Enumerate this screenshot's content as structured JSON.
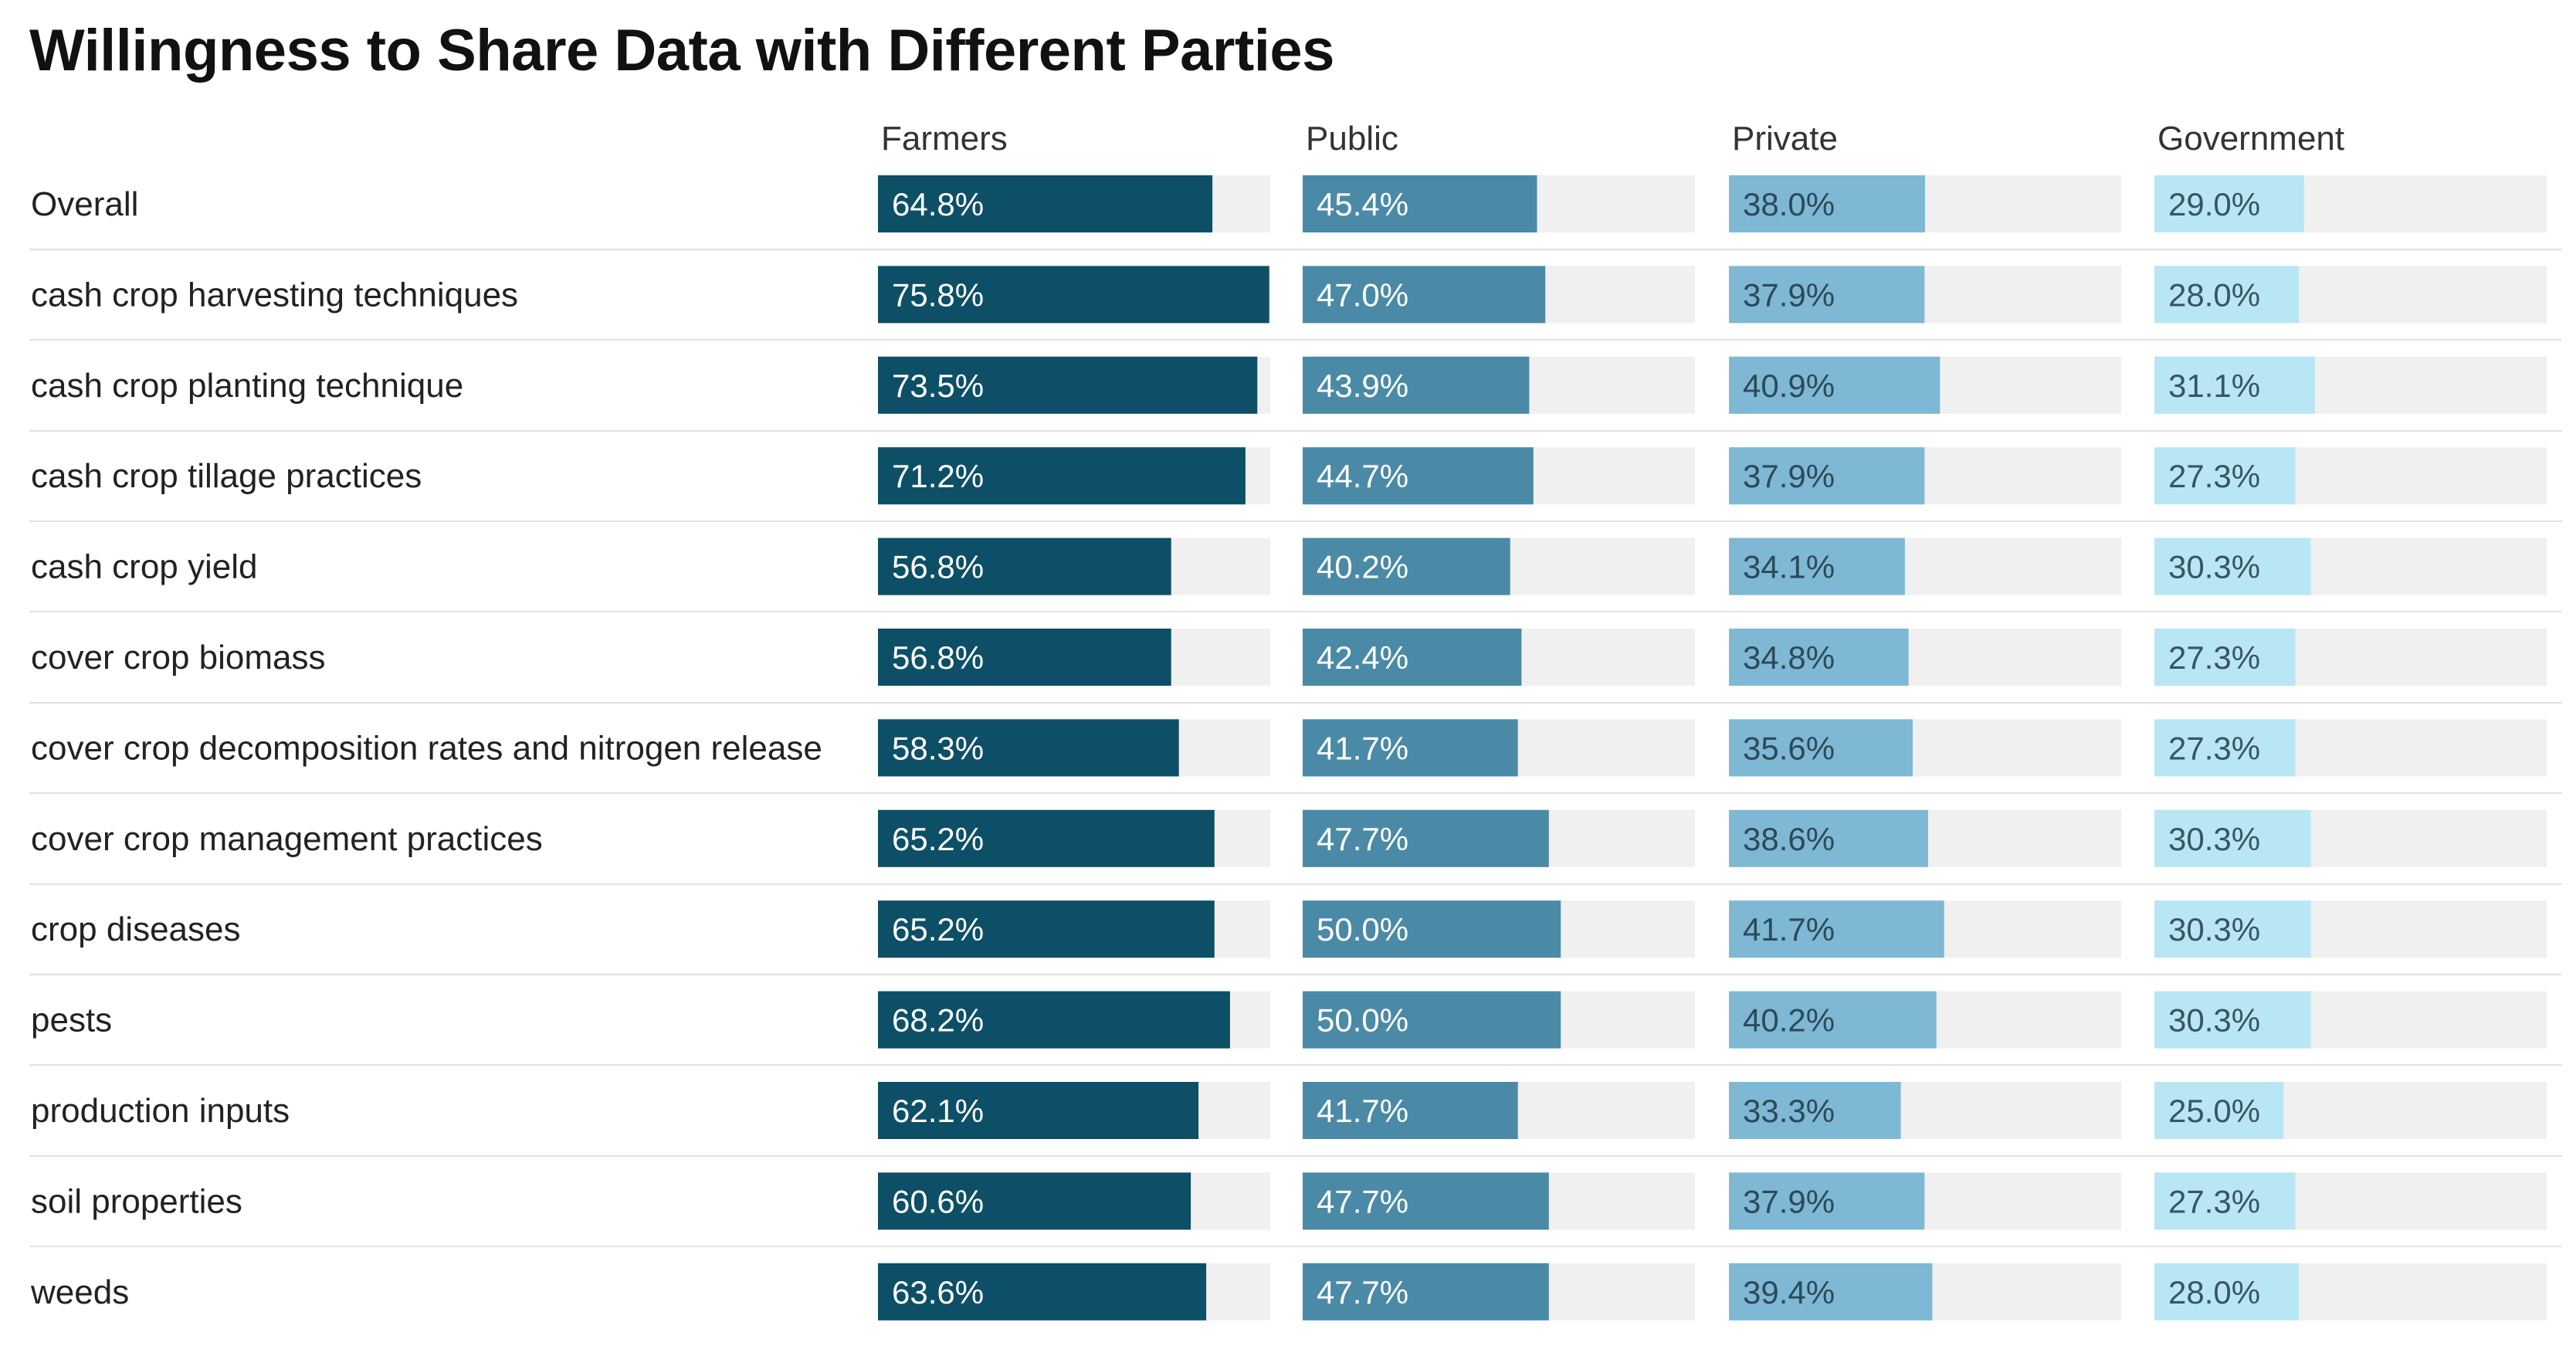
{
  "chart_data": {
    "type": "bar",
    "title": "Willingness to Share Data with Different Parties",
    "series": [
      {
        "name": "Farmers",
        "color": "#0d4f66",
        "label_color": "#ffffff",
        "values": [
          64.8,
          75.8,
          73.5,
          71.2,
          56.8,
          56.8,
          58.3,
          65.2,
          65.2,
          68.2,
          62.1,
          60.6,
          63.6
        ],
        "labels": [
          "64.8%",
          "75.8%",
          "73.5%",
          "71.2%",
          "56.8%",
          "56.8%",
          "58.3%",
          "65.2%",
          "65.2%",
          "68.2%",
          "62.1%",
          "60.6%",
          "63.6%"
        ]
      },
      {
        "name": "Public",
        "color": "#4a8aa6",
        "label_color": "#ffffff",
        "values": [
          45.4,
          47.0,
          43.9,
          44.7,
          40.2,
          42.4,
          41.7,
          47.7,
          50.0,
          50.0,
          41.7,
          47.7,
          47.7
        ],
        "labels": [
          "45.4%",
          "47.0%",
          "43.9%",
          "44.7%",
          "40.2%",
          "42.4%",
          "41.7%",
          "47.7%",
          "50.0%",
          "50.0%",
          "41.7%",
          "47.7%",
          "47.7%"
        ]
      },
      {
        "name": "Private",
        "color": "#7fb8d4",
        "label_color": "#2b4a5a",
        "values": [
          38.0,
          37.9,
          40.9,
          37.9,
          34.1,
          34.8,
          35.6,
          38.6,
          41.7,
          40.2,
          33.3,
          37.9,
          39.4
        ],
        "labels": [
          "38.0%",
          "37.9%",
          "40.9%",
          "37.9%",
          "34.1%",
          "34.8%",
          "35.6%",
          "38.6%",
          "41.7%",
          "40.2%",
          "33.3%",
          "37.9%",
          "39.4%"
        ]
      },
      {
        "name": "Government",
        "color": "#b8e6f5",
        "label_color": "#3a5560",
        "values": [
          29.0,
          28.0,
          31.1,
          27.3,
          30.3,
          27.3,
          27.3,
          30.3,
          30.3,
          30.3,
          25.0,
          27.3,
          28.0
        ],
        "labels": [
          "29.0%",
          "28.0%",
          "31.1%",
          "27.3%",
          "30.3%",
          "27.3%",
          "27.3%",
          "30.3%",
          "30.3%",
          "30.3%",
          "25.0%",
          "27.3%",
          "28.0%"
        ]
      }
    ],
    "categories": [
      "Overall",
      "cash crop harvesting techniques",
      "cash crop planting technique",
      "cash crop tillage practices",
      "cash crop yield",
      "cover crop biomass",
      "cover crop decomposition rates and nitrogen release",
      "cover crop management practices",
      "crop diseases",
      "pests",
      "production inputs",
      "soil properties",
      "weeds"
    ],
    "value_max": 76,
    "track_color": "#f0f0f0",
    "divider_color": "#e2e2e2"
  }
}
